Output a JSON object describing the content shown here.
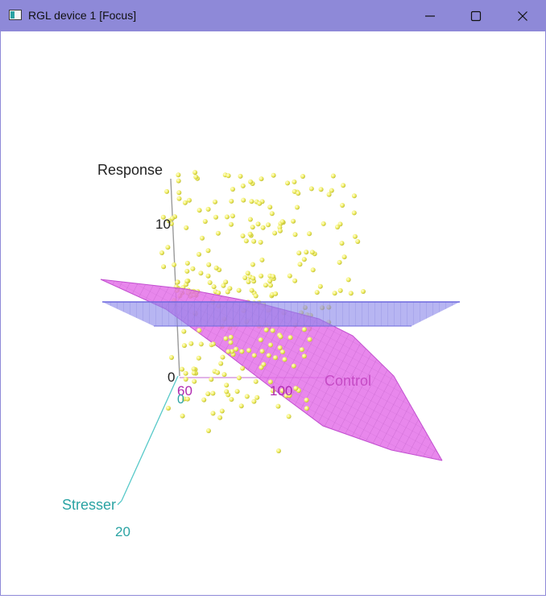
{
  "window": {
    "title": "RGL device 1 [Focus]",
    "titlebar_color": "#8e89d8",
    "icons": {
      "app": "rgl-window-icon",
      "minimize": "minimize-icon",
      "maximize": "maximize-icon",
      "close": "close-icon"
    }
  },
  "scene": {
    "axes": {
      "response": {
        "label": "Response",
        "ticks": [
          "10",
          "0"
        ],
        "color": "#222222"
      },
      "control": {
        "label": "Control",
        "ticks": [
          "60",
          "100"
        ],
        "color": "#b02ab0"
      },
      "stresser": {
        "label": "Stresser",
        "ticks": [
          "0",
          "20"
        ],
        "color": "#2aa3a3"
      }
    },
    "colors": {
      "points": "#f2f066",
      "pink_surface": "#e36ce8",
      "blue_plane": "#8b87ea"
    }
  }
}
